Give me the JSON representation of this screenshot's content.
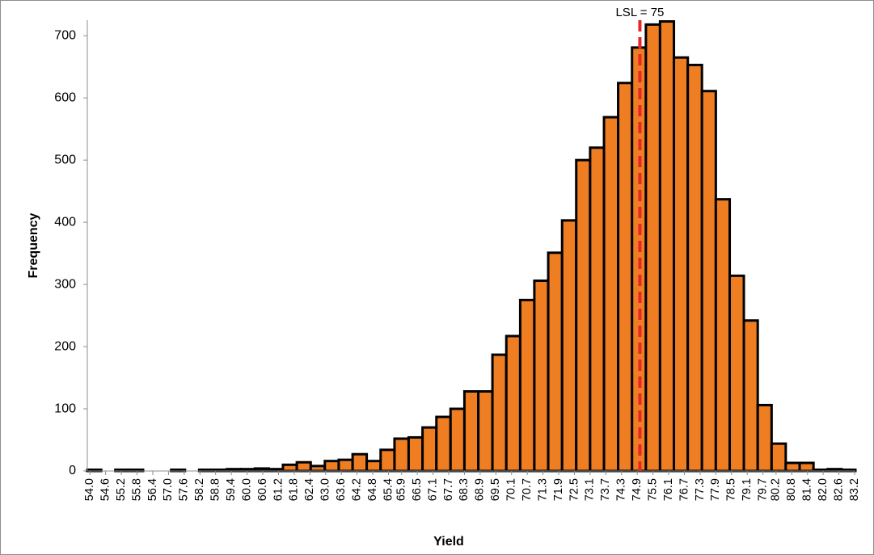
{
  "chart_data": {
    "type": "histogram",
    "x_label": "Yield",
    "y_label": "Frequency",
    "color": "#ef7d22",
    "edge_color": "#000000",
    "bins": [
      53.9,
      54.43,
      54.97,
      55.5,
      56.03,
      56.57,
      57.1,
      57.63,
      58.17,
      58.7,
      59.23,
      59.77,
      60.3,
      60.83,
      61.37,
      61.9,
      62.43,
      62.97,
      63.5,
      64.03,
      64.57,
      65.1,
      65.63,
      66.17,
      66.7,
      67.23,
      67.77,
      68.3,
      68.83,
      69.37,
      69.9,
      70.43,
      70.97,
      71.5,
      72.03,
      72.57,
      73.1,
      73.63,
      74.17,
      74.7,
      75.23,
      75.77,
      76.3,
      76.83,
      77.37,
      77.9,
      78.43,
      78.97,
      79.5,
      80.03,
      80.57,
      81.1,
      81.63,
      82.17,
      82.7,
      83.23
    ],
    "values": [
      2,
      0,
      2,
      2,
      0,
      0,
      2,
      0,
      2,
      2,
      3,
      3,
      4,
      3,
      10,
      14,
      8,
      16,
      18,
      27,
      16,
      34,
      52,
      54,
      70,
      87,
      100,
      128,
      128,
      187,
      217,
      275,
      306,
      351,
      403,
      500,
      520,
      569,
      624,
      681,
      718,
      723,
      665,
      653,
      611,
      437,
      314,
      242,
      106,
      44,
      13,
      13,
      2,
      3,
      2
    ],
    "xlim": [
      53.9,
      83.23
    ],
    "ylim": [
      0,
      725
    ],
    "yticks": [
      0,
      100,
      200,
      300,
      400,
      500,
      600,
      700
    ],
    "xticks": [
      {
        "value": 54,
        "label": "54.0"
      },
      54.6,
      55.2,
      55.8,
      56.4,
      {
        "value": 57,
        "label": "57.0"
      },
      57.6,
      58.2,
      58.8,
      59.4,
      {
        "value": 60,
        "label": "60.0"
      },
      60.6,
      61.2,
      61.8,
      62.4,
      {
        "value": 63,
        "label": "63.0"
      },
      63.6,
      64.2,
      64.8,
      65.4,
      65.9,
      66.5,
      67.1,
      67.7,
      68.3,
      68.9,
      69.5,
      70.1,
      70.7,
      71.3,
      71.9,
      72.5,
      73.1,
      73.7,
      74.3,
      74.9,
      75.5,
      76.1,
      76.7,
      77.3,
      77.9,
      78.5,
      79.1,
      79.7,
      80.2,
      80.8,
      81.4,
      {
        "value": 82,
        "label": "82.0"
      },
      82.6,
      83.2
    ],
    "annotations": [
      {
        "text": "LSL = 75",
        "x": 75,
        "color": "#e8262a"
      }
    ],
    "grid": false
  }
}
